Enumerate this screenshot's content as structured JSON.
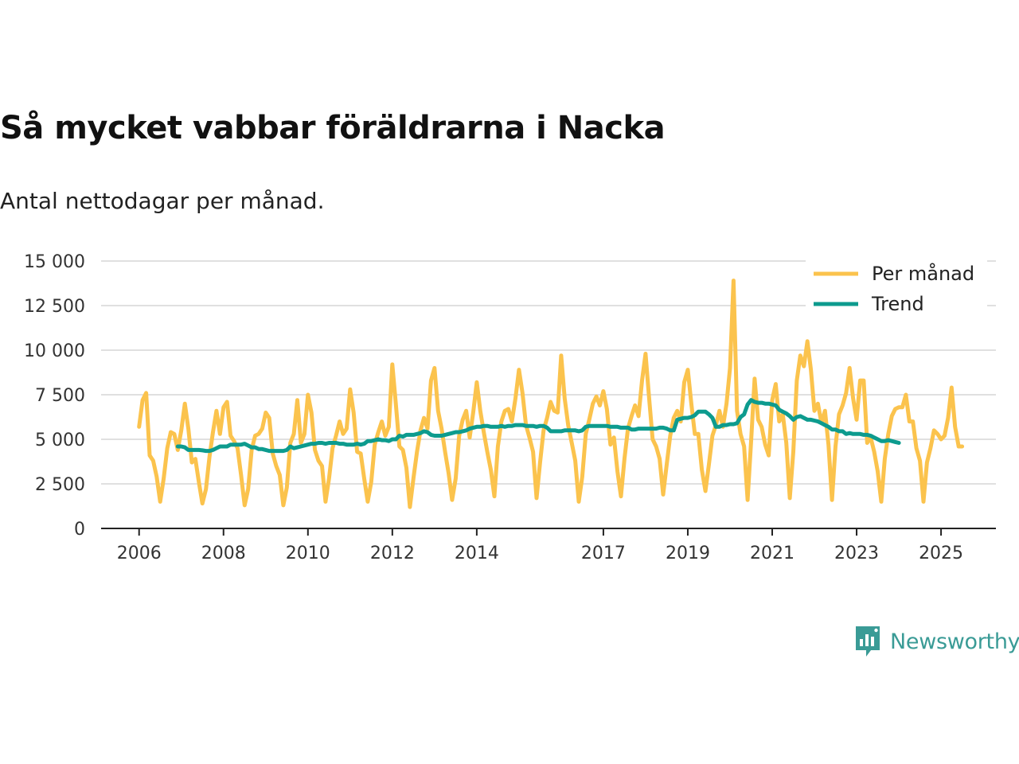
{
  "header": {
    "title": "Så mycket vabbar föräldrarna i Nacka",
    "subtitle": "Antal nettodagar per månad."
  },
  "brand": {
    "name": "Newsworthy",
    "icon": "newsworthy-logo-icon",
    "color": "#3a9b96"
  },
  "chart_data": {
    "type": "line",
    "title": "Så mycket vabbar föräldrarna i Nacka",
    "subtitle": "Antal nettodagar per månad.",
    "xlabel": "",
    "ylabel": "",
    "x_unit": "year (decimal)",
    "xlim": [
      2005.1,
      2026.3
    ],
    "ylim": [
      0,
      15000
    ],
    "grid": true,
    "legend_position": "top-right",
    "x_ticks": [
      {
        "value": 2006,
        "label": "2006"
      },
      {
        "value": 2008,
        "label": "2008"
      },
      {
        "value": 2010,
        "label": "2010"
      },
      {
        "value": 2012,
        "label": "2012"
      },
      {
        "value": 2014,
        "label": "2014"
      },
      {
        "value": 2017,
        "label": "2017"
      },
      {
        "value": 2019,
        "label": "2019"
      },
      {
        "value": 2021,
        "label": "2021"
      },
      {
        "value": 2023,
        "label": "2023"
      },
      {
        "value": 2025,
        "label": "2025"
      }
    ],
    "y_ticks": [
      {
        "value": 0,
        "label": "0"
      },
      {
        "value": 2500,
        "label": "2 500"
      },
      {
        "value": 5000,
        "label": "5 000"
      },
      {
        "value": 7500,
        "label": "7 500"
      },
      {
        "value": 10000,
        "label": "10 000"
      },
      {
        "value": 12500,
        "label": "12 500"
      },
      {
        "value": 15000,
        "label": "15 000"
      }
    ],
    "series": [
      {
        "name": "Per månad",
        "color": "#fbc34d",
        "x_start": 2006.0,
        "x_step": 0.083333,
        "values": [
          5700,
          7200,
          7600,
          4100,
          3800,
          2900,
          1500,
          2800,
          4500,
          5400,
          5300,
          4400,
          5500,
          7000,
          5600,
          3700,
          3900,
          2600,
          1400,
          2200,
          4000,
          5400,
          6600,
          5300,
          6800,
          7100,
          5200,
          4900,
          4500,
          3000,
          1300,
          2200,
          4400,
          5200,
          5300,
          5600,
          6500,
          6200,
          4200,
          3500,
          3000,
          1300,
          2300,
          4800,
          5300,
          7200,
          4800,
          5300,
          7500,
          6500,
          4400,
          3800,
          3500,
          1500,
          2800,
          4500,
          5200,
          6000,
          5300,
          5600,
          7800,
          6500,
          4300,
          4200,
          2800,
          1500,
          2600,
          4700,
          5400,
          6000,
          5200,
          5700,
          9200,
          7000,
          4600,
          4400,
          3400,
          1200,
          2800,
          4300,
          5500,
          6200,
          5600,
          8300,
          9000,
          6600,
          5600,
          4300,
          3100,
          1600,
          2800,
          5200,
          6100,
          6600,
          5100,
          6500,
          8200,
          6600,
          5400,
          4300,
          3300,
          1800,
          4600,
          6000,
          6600,
          6700,
          6000,
          7300,
          8900,
          7600,
          5800,
          5100,
          4300,
          1700,
          3700,
          5500,
          6200,
          7100,
          6600,
          6500,
          9700,
          7300,
          5800,
          4800,
          3800,
          1500,
          2900,
          5300,
          6100,
          7000,
          7400,
          6900,
          7700,
          6700,
          4700,
          5100,
          3200,
          1800,
          3900,
          5600,
          6300,
          6900,
          6300,
          8300,
          9800,
          7300,
          5000,
          4600,
          3900,
          1900,
          3600,
          5200,
          6200,
          6600,
          6000,
          8200,
          8900,
          7000,
          5300,
          5300,
          3300,
          2100,
          3600,
          5200,
          5800,
          6600,
          5700,
          7000,
          9000,
          13900,
          6600,
          5300,
          4600,
          1600,
          4900,
          8400,
          6100,
          5700,
          4700,
          4100,
          7200,
          8100,
          6000,
          6400,
          4800,
          1700,
          4300,
          8300,
          9700,
          9100,
          10500,
          8900,
          6600,
          7000,
          5900,
          6600,
          4700,
          1600,
          4600,
          6400,
          6900,
          7600,
          9000,
          7300,
          6100,
          8300,
          8300,
          4800,
          5100,
          4300,
          3200,
          1500,
          3900,
          5300,
          6300,
          6700,
          6800,
          6800,
          7500,
          6000,
          6000,
          4500,
          3800,
          1500,
          3700,
          4500,
          5500,
          5300,
          5000,
          5200,
          6200,
          7900,
          5700,
          4600,
          4600
        ]
      },
      {
        "name": "Trend",
        "color": "#0d9b8e",
        "x_start": 2006.917,
        "x_step": 0.083333,
        "values": [
          4600,
          4600,
          4550,
          4400,
          4400,
          4400,
          4400,
          4380,
          4350,
          4350,
          4400,
          4500,
          4600,
          4600,
          4600,
          4700,
          4700,
          4700,
          4700,
          4750,
          4650,
          4550,
          4550,
          4450,
          4450,
          4400,
          4350,
          4350,
          4350,
          4350,
          4350,
          4400,
          4600,
          4500,
          4550,
          4600,
          4650,
          4700,
          4750,
          4750,
          4800,
          4800,
          4750,
          4800,
          4800,
          4800,
          4750,
          4750,
          4700,
          4700,
          4700,
          4750,
          4700,
          4750,
          4900,
          4900,
          4950,
          5000,
          4950,
          4950,
          4900,
          5000,
          5000,
          5200,
          5150,
          5250,
          5250,
          5250,
          5300,
          5350,
          5450,
          5400,
          5250,
          5200,
          5200,
          5200,
          5250,
          5300,
          5350,
          5400,
          5400,
          5450,
          5500,
          5600,
          5650,
          5700,
          5700,
          5750,
          5750,
          5700,
          5700,
          5700,
          5750,
          5700,
          5750,
          5750,
          5800,
          5800,
          5800,
          5750,
          5750,
          5750,
          5700,
          5750,
          5750,
          5650,
          5450,
          5450,
          5450,
          5450,
          5500,
          5500,
          5500,
          5500,
          5450,
          5500,
          5700,
          5750,
          5750,
          5750,
          5750,
          5750,
          5750,
          5700,
          5700,
          5700,
          5650,
          5650,
          5650,
          5550,
          5550,
          5600,
          5600,
          5600,
          5600,
          5600,
          5600,
          5650,
          5650,
          5600,
          5500,
          5500,
          6100,
          6150,
          6200,
          6200,
          6250,
          6350,
          6550,
          6550,
          6550,
          6400,
          6200,
          5700,
          5700,
          5800,
          5800,
          5850,
          5850,
          5900,
          6250,
          6400,
          6950,
          7200,
          7100,
          7050,
          7050,
          7000,
          7000,
          6950,
          6900,
          6650,
          6550,
          6450,
          6300,
          6100,
          6250,
          6300,
          6200,
          6100,
          6100,
          6050,
          6000,
          5900,
          5800,
          5700,
          5550,
          5550,
          5450,
          5450,
          5300,
          5350,
          5300,
          5300,
          5300,
          5250,
          5250,
          5200,
          5100,
          5000,
          4900,
          4900,
          4950,
          4900,
          4850,
          4800
        ]
      }
    ]
  }
}
